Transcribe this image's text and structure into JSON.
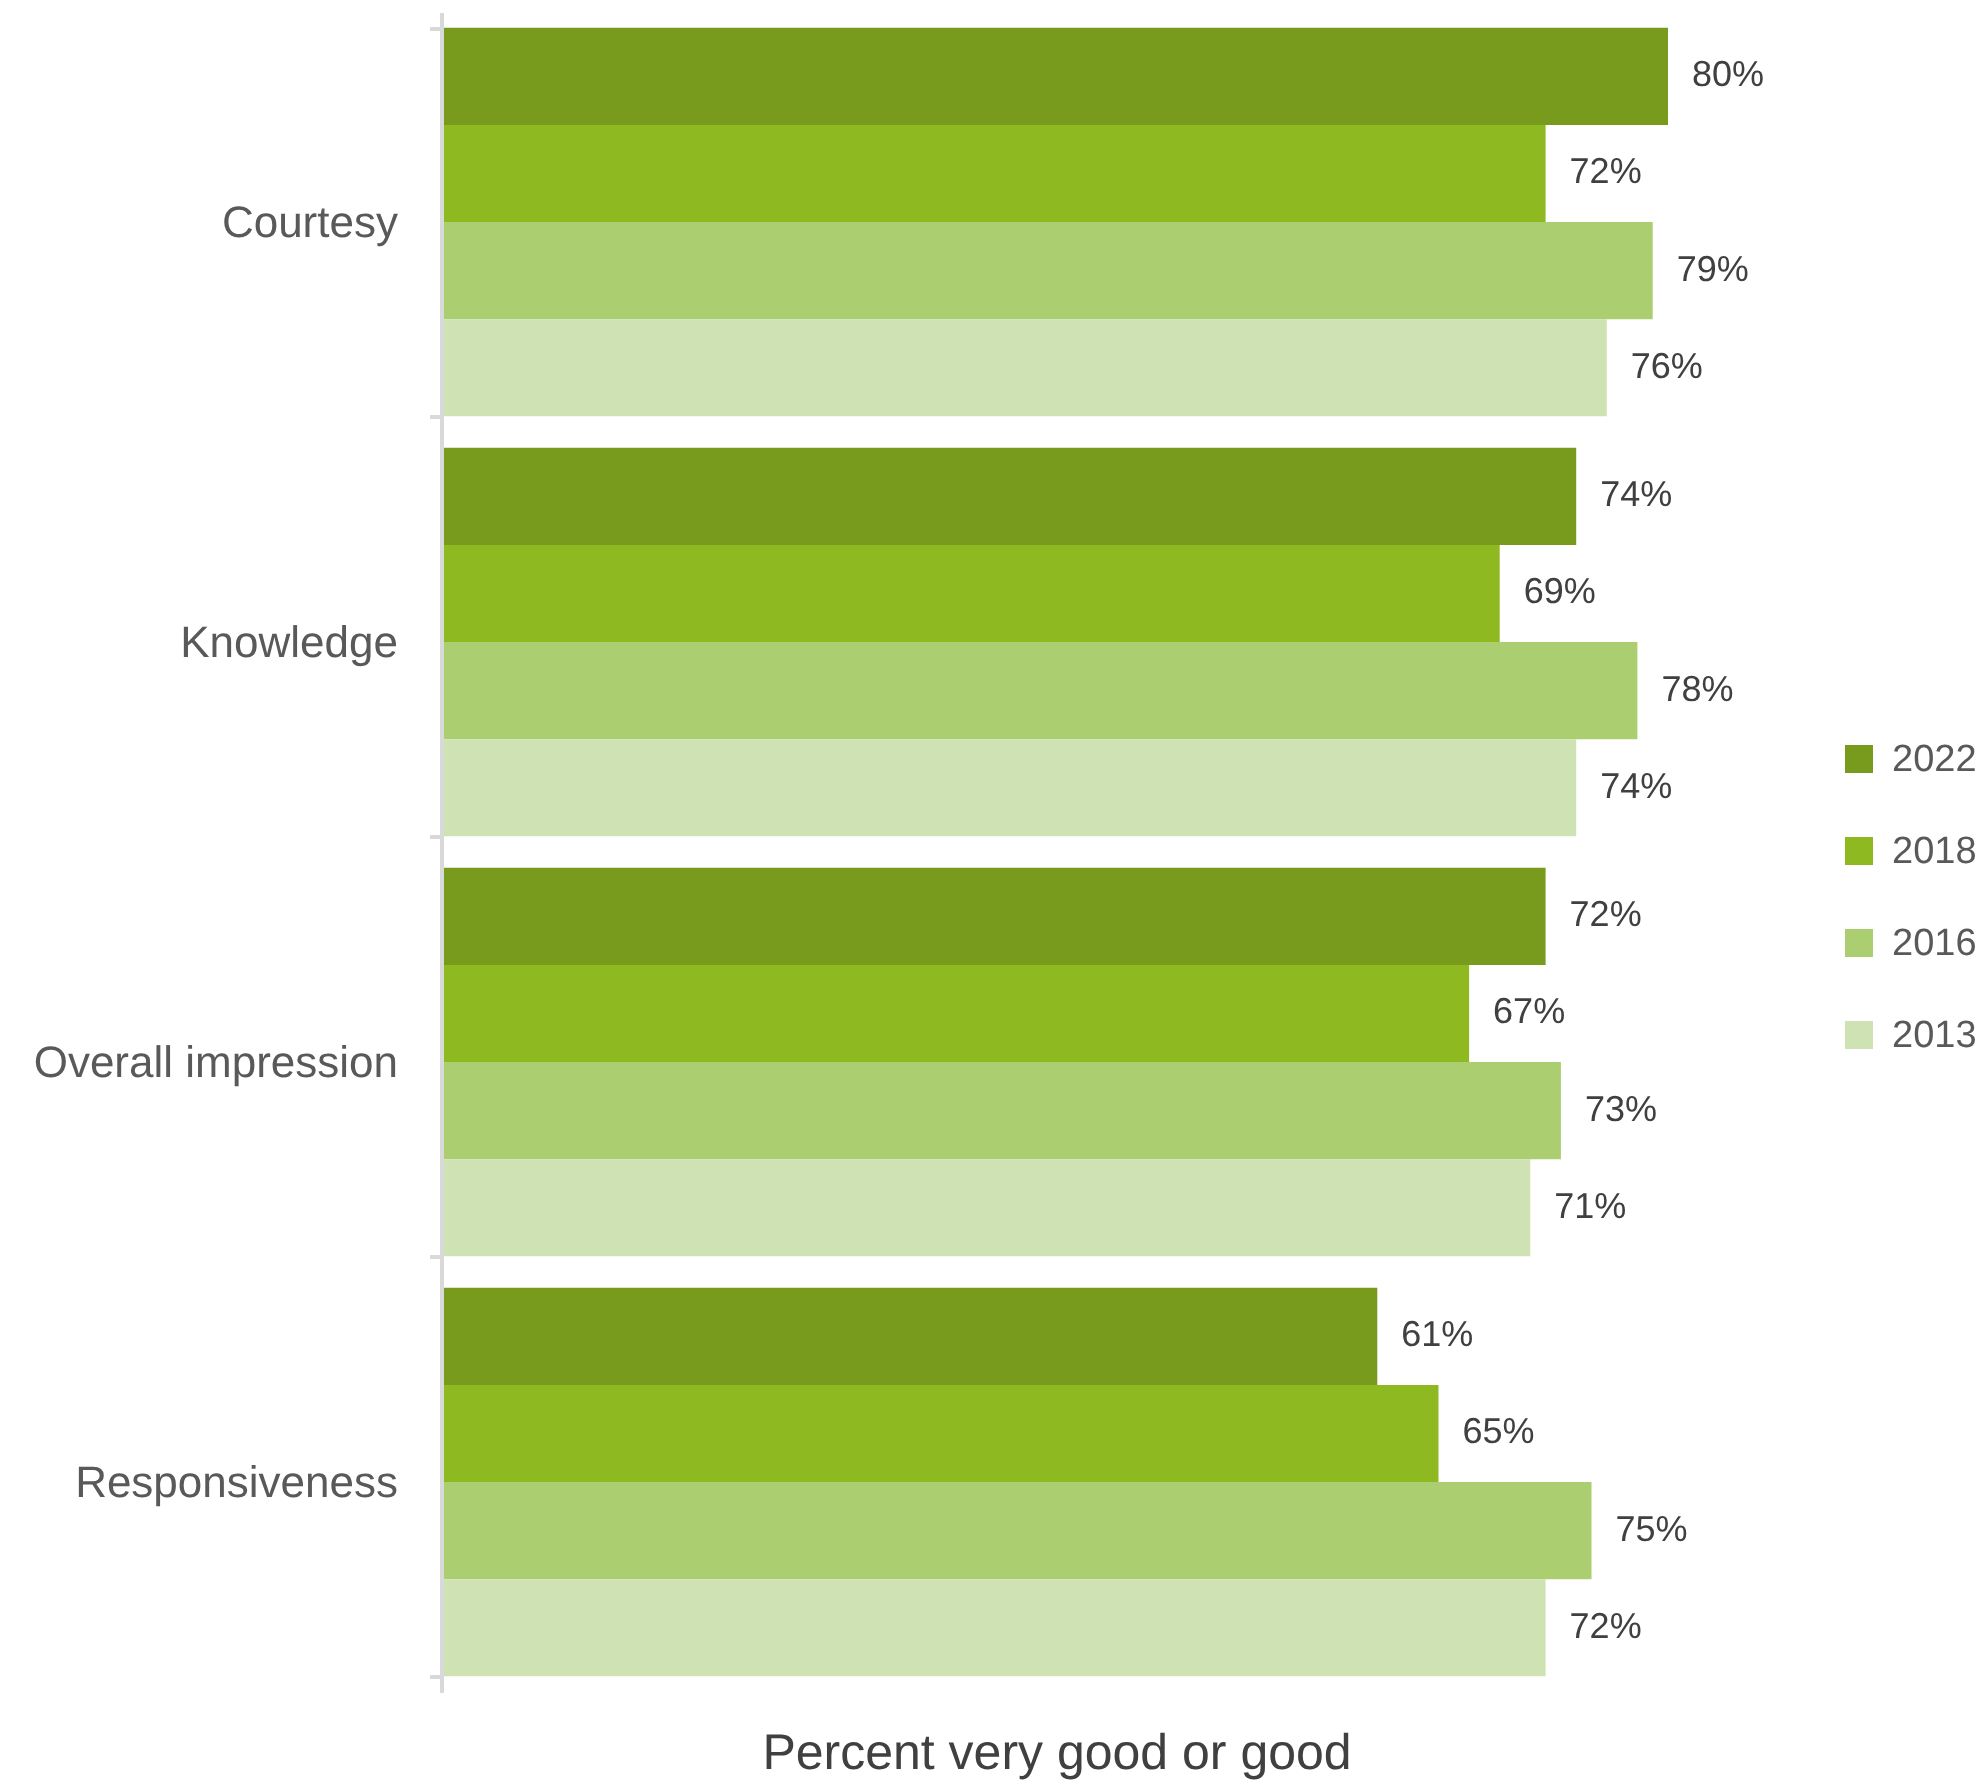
{
  "chart_data": {
    "type": "bar",
    "orientation": "horizontal",
    "xlabel": "Percent very good or good",
    "categories": [
      "Courtesy",
      "Knowledge",
      "Overall impression",
      "Responsiveness"
    ],
    "series": [
      {
        "name": "2022",
        "color": "#789b1e",
        "values": [
          80,
          74,
          72,
          61
        ],
        "value_labels": [
          "80%",
          "74%",
          "72%",
          "61%"
        ]
      },
      {
        "name": "2018",
        "color": "#8fb920",
        "values": [
          72,
          69,
          67,
          65
        ],
        "value_labels": [
          "72%",
          "69%",
          "67%",
          "65%"
        ]
      },
      {
        "name": "2016",
        "color": "#abcf70",
        "values": [
          79,
          78,
          73,
          75
        ],
        "value_labels": [
          "79%",
          "78%",
          "73%",
          "75%"
        ]
      },
      {
        "name": "2013",
        "color": "#cfe2b3",
        "values": [
          76,
          74,
          71,
          72
        ],
        "value_labels": [
          "76%",
          "74%",
          "71%",
          "72%"
        ]
      }
    ],
    "legend": "right",
    "tick_labels": "y"
  }
}
